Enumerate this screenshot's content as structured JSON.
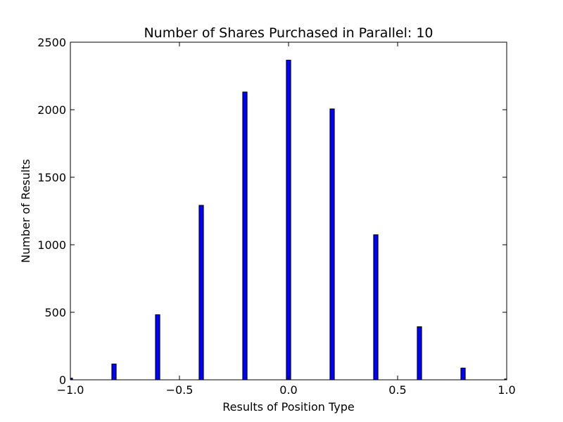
{
  "chart_data": {
    "type": "bar",
    "title": "Number of Shares Purchased in Parallel: 10",
    "xlabel": "Results of Position Type",
    "ylabel": "Number of Results",
    "xlim": [
      -1.0,
      1.0
    ],
    "ylim": [
      0,
      2500
    ],
    "x_ticks": [
      -1.0,
      -0.5,
      0.0,
      0.5,
      1.0
    ],
    "x_tick_labels": [
      "−1.0",
      "−0.5",
      "0.0",
      "0.5",
      "1.0"
    ],
    "y_ticks": [
      0,
      500,
      1000,
      1500,
      2000,
      2500
    ],
    "y_tick_labels": [
      "0",
      "500",
      "1000",
      "1500",
      "2000",
      "2500"
    ],
    "bar_width": 0.02,
    "bar_color": "#0000ff",
    "x": [
      -1.0,
      -0.8,
      -0.6,
      -0.4,
      -0.2,
      0.0,
      0.2,
      0.4,
      0.6,
      0.8,
      1.0
    ],
    "values": [
      12,
      117,
      482,
      1292,
      2131,
      2367,
      2006,
      1074,
      393,
      87,
      6
    ],
    "grid": false,
    "legend": "none"
  }
}
